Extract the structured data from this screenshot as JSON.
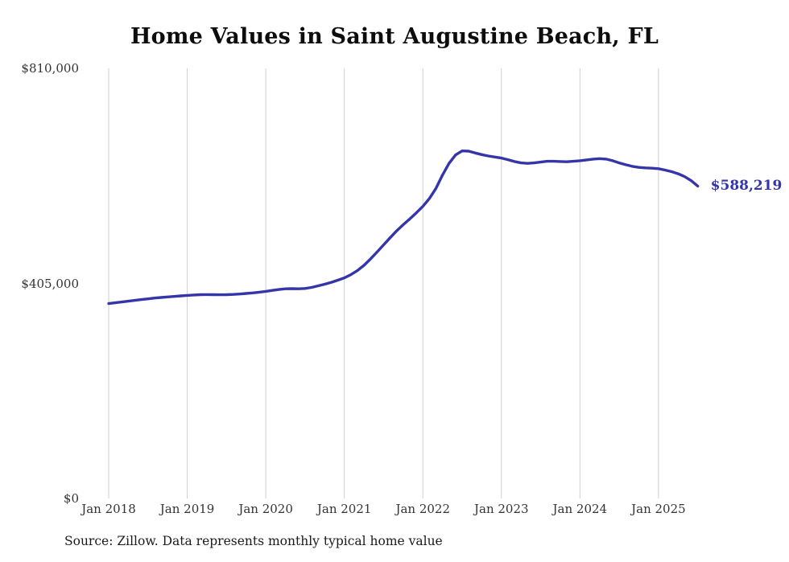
{
  "page": {
    "source_note": "Source: Zillow. Data represents monthly typical home value"
  },
  "chart_data": {
    "type": "line",
    "title": "Home Values in Saint Augustine Beach, FL",
    "xlabel": "",
    "ylabel": "",
    "ylim": [
      0,
      810000
    ],
    "grid": "vertical",
    "legend_position": "none",
    "line_color": "#3535aa",
    "gridline_color": "#cfcfcf",
    "end_label": "$588,219",
    "end_value": 588219,
    "yticks": [
      {
        "value": 810000,
        "label": "$810,000"
      },
      {
        "value": 405000,
        "label": "$405,000"
      },
      {
        "value": 0,
        "label": "$0"
      }
    ],
    "xticks": [
      {
        "month": "2018-01",
        "label": "Jan 2018"
      },
      {
        "month": "2019-01",
        "label": "Jan 2019"
      },
      {
        "month": "2020-01",
        "label": "Jan 2020"
      },
      {
        "month": "2021-01",
        "label": "Jan 2021"
      },
      {
        "month": "2022-01",
        "label": "Jan 2022"
      },
      {
        "month": "2023-01",
        "label": "Jan 2023"
      },
      {
        "month": "2024-01",
        "label": "Jan 2024"
      },
      {
        "month": "2025-01",
        "label": "Jan 2025"
      }
    ],
    "series": [
      {
        "name": "Typical home value",
        "frequency": "monthly",
        "months": [
          "2018-01",
          "2018-02",
          "2018-03",
          "2018-04",
          "2018-05",
          "2018-06",
          "2018-07",
          "2018-08",
          "2018-09",
          "2018-10",
          "2018-11",
          "2018-12",
          "2019-01",
          "2019-02",
          "2019-03",
          "2019-04",
          "2019-05",
          "2019-06",
          "2019-07",
          "2019-08",
          "2019-09",
          "2019-10",
          "2019-11",
          "2019-12",
          "2020-01",
          "2020-02",
          "2020-03",
          "2020-04",
          "2020-05",
          "2020-06",
          "2020-07",
          "2020-08",
          "2020-09",
          "2020-10",
          "2020-11",
          "2020-12",
          "2021-01",
          "2021-02",
          "2021-03",
          "2021-04",
          "2021-05",
          "2021-06",
          "2021-07",
          "2021-08",
          "2021-09",
          "2021-10",
          "2021-11",
          "2021-12",
          "2022-01",
          "2022-02",
          "2022-03",
          "2022-04",
          "2022-05",
          "2022-06",
          "2022-07",
          "2022-08",
          "2022-09",
          "2022-10",
          "2022-11",
          "2022-12",
          "2023-01",
          "2023-02",
          "2023-03",
          "2023-04",
          "2023-05",
          "2023-06",
          "2023-07",
          "2023-08",
          "2023-09",
          "2023-10",
          "2023-11",
          "2023-12",
          "2024-01",
          "2024-02",
          "2024-03",
          "2024-04",
          "2024-05",
          "2024-06",
          "2024-07",
          "2024-08",
          "2024-09",
          "2024-10",
          "2024-11",
          "2024-12",
          "2025-01",
          "2025-02",
          "2025-03",
          "2025-04",
          "2025-05",
          "2025-06",
          "2025-07"
        ],
        "values": [
          367000,
          368500,
          370000,
          371500,
          373000,
          374500,
          376000,
          377500,
          378500,
          379500,
          380500,
          381500,
          382500,
          383200,
          383800,
          384000,
          383800,
          383600,
          383800,
          384200,
          385000,
          386000,
          387200,
          388500,
          390000,
          391800,
          393500,
          394800,
          395200,
          394800,
          395500,
          397500,
          400500,
          403500,
          407000,
          411000,
          415500,
          421500,
          429000,
          439000,
          451000,
          464000,
          477500,
          491000,
          504000,
          515500,
          526500,
          538000,
          550000,
          565000,
          584000,
          609000,
          631000,
          647000,
          654500,
          654000,
          650500,
          647500,
          645000,
          643000,
          641000,
          638000,
          634500,
          632000,
          631000,
          632000,
          633500,
          635000,
          635000,
          634500,
          634000,
          635000,
          636000,
          637500,
          639000,
          640000,
          639000,
          636000,
          632000,
          628500,
          625500,
          623500,
          622500,
          622000,
          621000,
          618500,
          615500,
          611500,
          606000,
          598500,
          588219
        ]
      }
    ]
  }
}
